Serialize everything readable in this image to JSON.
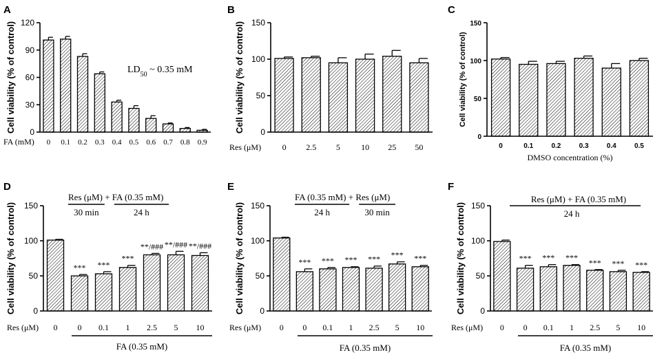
{
  "chart_data": [
    {
      "id": "A",
      "type": "bar",
      "ylabel": "Cell viability (% of control)",
      "xlabel_prefix": "FA (mM)",
      "categories": [
        "0",
        "0.1",
        "0.2",
        "0.3",
        "0.4",
        "0.5",
        "0.6",
        "0.7",
        "0.8",
        "0.9"
      ],
      "values": [
        101,
        102,
        83,
        64,
        33,
        26,
        15,
        9,
        4,
        2
      ],
      "errors": [
        3,
        3,
        3,
        2,
        2,
        3,
        3,
        1,
        1,
        1
      ],
      "ylim": [
        0,
        120
      ],
      "yticks": [
        0,
        30,
        60,
        90,
        120
      ],
      "annotation": {
        "lead": "LD",
        "sub": "50",
        "rest": " ~ 0.35 mM"
      }
    },
    {
      "id": "B",
      "type": "bar",
      "ylabel": "Cell viability (% of control)",
      "xlabel_prefix": "Res (μM)",
      "categories": [
        "0",
        "2.5",
        "5",
        "10",
        "25",
        "50"
      ],
      "values": [
        101,
        102,
        95,
        100,
        104,
        95
      ],
      "errors": [
        2,
        2,
        7,
        7,
        8,
        6
      ],
      "ylim": [
        0,
        150
      ],
      "yticks": [
        0,
        50,
        100,
        150
      ]
    },
    {
      "id": "C",
      "type": "bar",
      "ylabel": "Cell viability (% of control)",
      "xlabel": "DMSO concentration (%)",
      "categories": [
        "0",
        "0.1",
        "0.2",
        "0.3",
        "0.4",
        "0.5"
      ],
      "values": [
        102,
        95,
        96,
        103,
        90,
        100
      ],
      "errors": [
        2,
        4,
        3,
        3,
        6,
        3
      ],
      "ylim": [
        0,
        150
      ],
      "yticks": [
        0,
        50,
        100,
        150
      ]
    },
    {
      "id": "D",
      "type": "bar",
      "ylabel": "Cell viability (% of control)",
      "xlabel_prefix": "Res (μM)",
      "categories": [
        "0",
        "0",
        "0.1",
        "1",
        "2.5",
        "5",
        "10"
      ],
      "values": [
        101,
        50,
        53,
        62,
        80,
        80,
        79
      ],
      "errors": [
        1,
        2,
        3,
        3,
        2,
        5,
        4
      ],
      "significance": [
        "",
        "***",
        "***",
        "***",
        "**/###",
        "**/###",
        "**/###"
      ],
      "ylim": [
        0,
        150
      ],
      "yticks": [
        0,
        50,
        100,
        150
      ],
      "group_label": "FA (0.35 mM)",
      "treatment": {
        "first": "Res (μM)",
        "joiner": " + ",
        "second": "FA (0.35 mM)",
        "first_time": "30 min",
        "second_time": "24 h"
      }
    },
    {
      "id": "E",
      "type": "bar",
      "ylabel": "Cell viability (% of control)",
      "xlabel_prefix": "Res (μM)",
      "categories": [
        "0",
        "0",
        "0.1",
        "1",
        "2.5",
        "5",
        "10"
      ],
      "values": [
        104,
        56,
        60,
        62,
        61,
        67,
        63
      ],
      "errors": [
        1,
        4,
        2,
        1,
        3,
        3,
        2
      ],
      "significance": [
        "",
        "***",
        "***",
        "***",
        "***",
        "***",
        "***"
      ],
      "ylim": [
        0,
        150
      ],
      "yticks": [
        0,
        50,
        100,
        150
      ],
      "group_label": "FA (0.35 mM)",
      "treatment": {
        "first": "FA (0.35 mM)",
        "joiner": " + ",
        "second": "Res (μM)",
        "first_time": "24 h",
        "second_time": "30 min"
      }
    },
    {
      "id": "F",
      "type": "bar",
      "ylabel": "Cell viability (% of control)",
      "xlabel_prefix": "Res (μM)",
      "categories": [
        "0",
        "0",
        "0.1",
        "1",
        "2.5",
        "5",
        "10"
      ],
      "values": [
        99,
        61,
        63,
        65,
        58,
        56,
        55
      ],
      "errors": [
        2,
        4,
        3,
        1,
        1,
        2,
        1
      ],
      "significance": [
        "",
        "***",
        "***",
        "***",
        "***",
        "***",
        "***"
      ],
      "ylim": [
        0,
        150
      ],
      "yticks": [
        0,
        50,
        100,
        150
      ],
      "group_label": "FA (0.35 mM)",
      "treatment": {
        "text": "Res (μM) + FA (0.35 mM)",
        "time": "24 h"
      }
    }
  ]
}
